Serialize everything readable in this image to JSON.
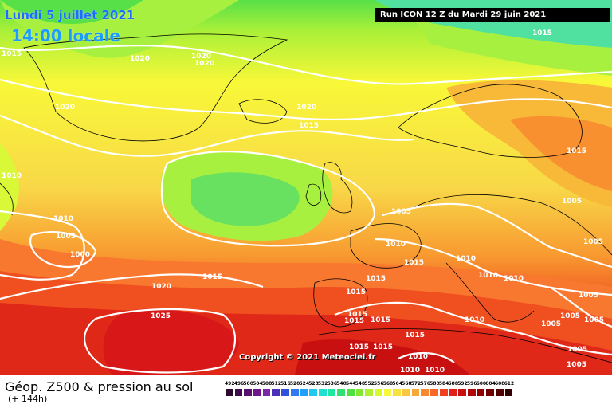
{
  "header": {
    "date": "Lundi 5 juillet 2021",
    "local_time": "14:00 locale",
    "run": "Run ICON 12 Z du Mardi 29 juin 2021"
  },
  "copyright": "Copyright © 2021 Meteociel.fr",
  "legend": {
    "title": "Géop. Z500 & pression au sol",
    "lead": "(+ 144h)",
    "scale_values": [
      "492",
      "496",
      "500",
      "504",
      "508",
      "512",
      "516",
      "520",
      "524",
      "528",
      "532",
      "536",
      "540",
      "544",
      "548",
      "552",
      "556",
      "560",
      "564",
      "568",
      "572",
      "576",
      "580",
      "584",
      "588",
      "592",
      "596",
      "600",
      "604",
      "608",
      "612"
    ],
    "scale_colors": [
      "#2b0a2e",
      "#3d0c4a",
      "#57106b",
      "#6e168a",
      "#7a2aa8",
      "#4a2fb8",
      "#2f50d8",
      "#2f78f0",
      "#20a0f8",
      "#20c8f0",
      "#20e0d0",
      "#20e8a0",
      "#30e070",
      "#50e040",
      "#80e830",
      "#b0f030",
      "#d8f830",
      "#f8f838",
      "#f8e040",
      "#f8c840",
      "#f8a838",
      "#f88830",
      "#f86828",
      "#f04020",
      "#e02018",
      "#c81010",
      "#b00808",
      "#900000",
      "#700000",
      "#500000",
      "#300000"
    ],
    "pressure_labels": [
      "1020",
      "1015",
      "1010",
      "1005",
      "1000",
      "1025"
    ]
  }
}
